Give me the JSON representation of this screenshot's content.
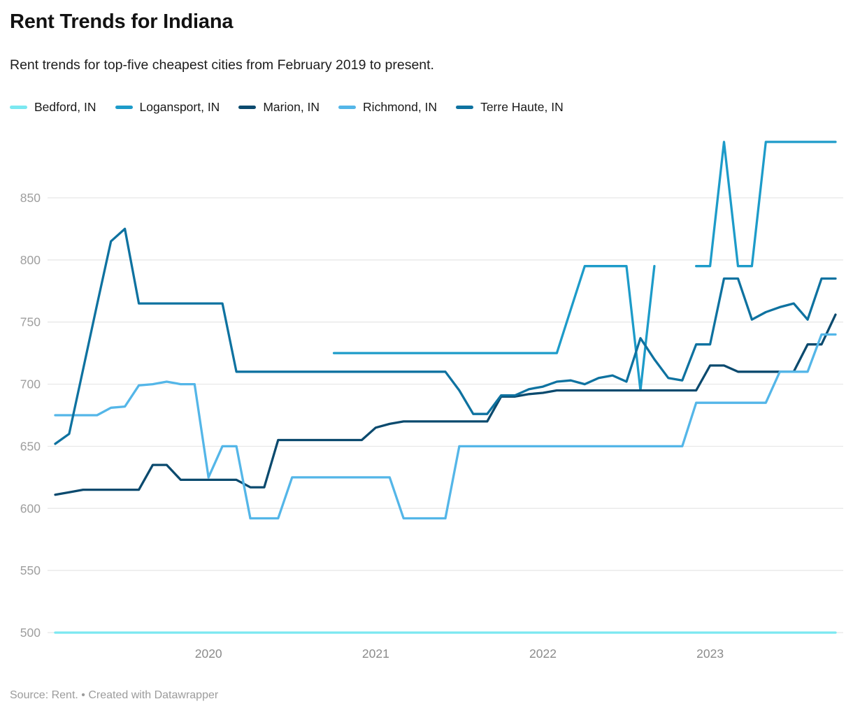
{
  "header": {
    "title": "Rent Trends for Indiana",
    "subtitle": "Rent trends for top-five cheapest cities from February 2019 to present."
  },
  "footer": {
    "text": "Source: Rent. • Created with Datawrapper"
  },
  "style_colors": {
    "grid": "#e6e6e6",
    "y_tick_text": "#9e9e9e",
    "x_tick_text": "#8b8b8b",
    "title_text": "#121212",
    "footer_text": "#9c9c9c"
  },
  "chart_data": {
    "type": "line",
    "title": "Rent Trends for Indiana",
    "x_interval": "monthly",
    "x_range": [
      "2019-02",
      "2023-10"
    ],
    "x_tick_labels": [
      "2020",
      "2021",
      "2022",
      "2023"
    ],
    "y_ticks": [
      500,
      550,
      600,
      650,
      700,
      750,
      800,
      850
    ],
    "ylim": [
      495,
      902
    ],
    "grid": true,
    "legend_position": "top",
    "months": [
      "2019-02",
      "2019-03",
      "2019-04",
      "2019-05",
      "2019-06",
      "2019-07",
      "2019-08",
      "2019-09",
      "2019-10",
      "2019-11",
      "2019-12",
      "2020-01",
      "2020-02",
      "2020-03",
      "2020-04",
      "2020-05",
      "2020-06",
      "2020-07",
      "2020-08",
      "2020-09",
      "2020-10",
      "2020-11",
      "2020-12",
      "2021-01",
      "2021-02",
      "2021-03",
      "2021-04",
      "2021-05",
      "2021-06",
      "2021-07",
      "2021-08",
      "2021-09",
      "2021-10",
      "2021-11",
      "2021-12",
      "2022-01",
      "2022-02",
      "2022-03",
      "2022-04",
      "2022-05",
      "2022-06",
      "2022-07",
      "2022-08",
      "2022-09",
      "2022-10",
      "2022-11",
      "2022-12",
      "2023-01",
      "2023-02",
      "2023-03",
      "2023-04",
      "2023-05",
      "2023-06",
      "2023-07",
      "2023-08",
      "2023-09",
      "2023-10"
    ],
    "series": [
      {
        "name": "Bedford, IN",
        "color": "#7be8f1",
        "values": [
          500,
          500,
          500,
          500,
          500,
          500,
          500,
          500,
          500,
          500,
          500,
          500,
          500,
          500,
          500,
          500,
          500,
          500,
          500,
          500,
          500,
          500,
          500,
          500,
          500,
          500,
          500,
          500,
          500,
          500,
          500,
          500,
          500,
          500,
          500,
          500,
          500,
          500,
          500,
          500,
          500,
          500,
          500,
          500,
          500,
          500,
          500,
          500,
          500,
          500,
          500,
          500,
          500,
          500,
          500,
          500,
          500
        ]
      },
      {
        "name": "Logansport, IN",
        "color": "#1d9bc9",
        "values": [
          null,
          null,
          null,
          null,
          null,
          null,
          null,
          null,
          null,
          null,
          null,
          null,
          null,
          null,
          null,
          null,
          null,
          null,
          null,
          null,
          725,
          725,
          725,
          725,
          725,
          725,
          725,
          725,
          725,
          725,
          725,
          725,
          725,
          725,
          725,
          725,
          725,
          760,
          795,
          795,
          795,
          795,
          695,
          795,
          null,
          null,
          795,
          795,
          895,
          795,
          795,
          895,
          895,
          895,
          895,
          895,
          895
        ]
      },
      {
        "name": "Marion, IN",
        "color": "#0b4a6e",
        "values": [
          611,
          613,
          615,
          615,
          615,
          615,
          615,
          635,
          635,
          623,
          623,
          623,
          623,
          623,
          617,
          617,
          655,
          655,
          655,
          655,
          655,
          655,
          655,
          665,
          668,
          670,
          670,
          670,
          670,
          670,
          670,
          670,
          690,
          690,
          692,
          693,
          695,
          695,
          695,
          695,
          695,
          695,
          695,
          695,
          695,
          695,
          695,
          715,
          715,
          710,
          710,
          710,
          710,
          710,
          732,
          732,
          756
        ]
      },
      {
        "name": "Richmond, IN",
        "color": "#54b6e8",
        "values": [
          675,
          675,
          675,
          675,
          681,
          682,
          699,
          700,
          702,
          700,
          700,
          625,
          650,
          650,
          592,
          592,
          592,
          625,
          625,
          625,
          625,
          625,
          625,
          625,
          625,
          592,
          592,
          592,
          592,
          650,
          650,
          650,
          650,
          650,
          650,
          650,
          650,
          650,
          650,
          650,
          650,
          650,
          650,
          650,
          650,
          650,
          685,
          685,
          685,
          685,
          685,
          685,
          710,
          710,
          710,
          740,
          740
        ]
      },
      {
        "name": "Terre Haute, IN",
        "color": "#0e72a0",
        "values": [
          652,
          660,
          712,
          764,
          815,
          825,
          765,
          765,
          765,
          765,
          765,
          765,
          765,
          710,
          710,
          710,
          710,
          710,
          710,
          710,
          710,
          710,
          710,
          710,
          710,
          710,
          710,
          710,
          710,
          695,
          676,
          676,
          691,
          691,
          696,
          698,
          702,
          703,
          700,
          705,
          707,
          702,
          737,
          720,
          705,
          703,
          732,
          732,
          785,
          785,
          752,
          758,
          762,
          765,
          752,
          785,
          785
        ]
      }
    ]
  }
}
